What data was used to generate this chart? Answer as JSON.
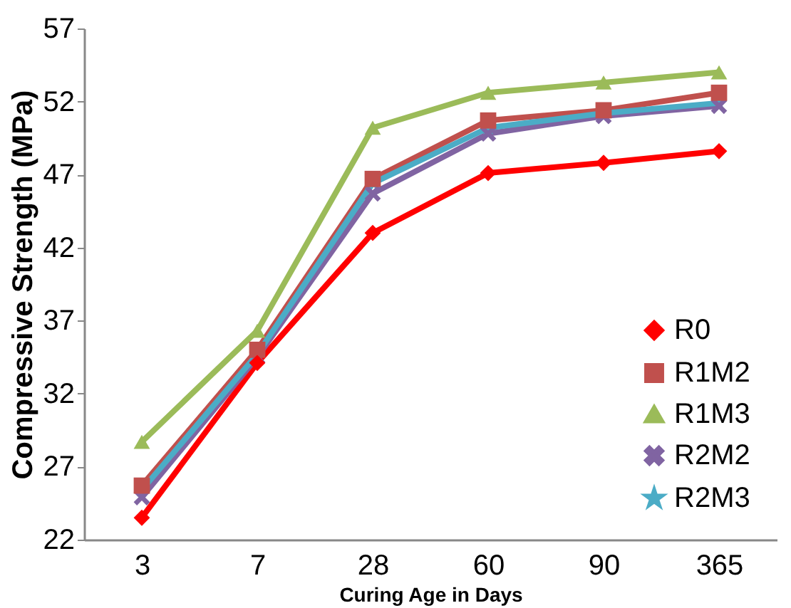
{
  "chart_data": {
    "type": "line",
    "xlabel": "Curing Age in Days",
    "ylabel": "Compressive Strength (MPa)",
    "categories": [
      "3",
      "7",
      "28",
      "60",
      "90",
      "365"
    ],
    "ylim": [
      22,
      57
    ],
    "yticks": [
      22,
      27,
      32,
      37,
      42,
      47,
      52,
      57
    ],
    "grid": false,
    "legend": "bottom right",
    "line_style": "solid",
    "series": [
      {
        "name": "R0",
        "color": "#ff0000",
        "marker": "diamond",
        "values": [
          23.5,
          34.1,
          43.0,
          47.1,
          47.8,
          48.6
        ]
      },
      {
        "name": "R1M2",
        "color": "#c0504d",
        "marker": "square",
        "values": [
          25.7,
          35.0,
          46.7,
          50.7,
          51.4,
          52.6
        ]
      },
      {
        "name": "R1M3",
        "color": "#9bbb59",
        "marker": "triangle",
        "values": [
          28.7,
          36.3,
          50.2,
          52.6,
          53.3,
          54.0
        ]
      },
      {
        "name": "R2M2",
        "color": "#8064a2",
        "marker": "cross",
        "values": [
          24.9,
          34.5,
          45.7,
          49.8,
          51.0,
          51.7
        ]
      },
      {
        "name": "R2M3",
        "color": "#4bacc6",
        "marker": "star",
        "values": [
          25.4,
          34.7,
          46.4,
          50.2,
          51.2,
          51.9
        ]
      }
    ]
  }
}
